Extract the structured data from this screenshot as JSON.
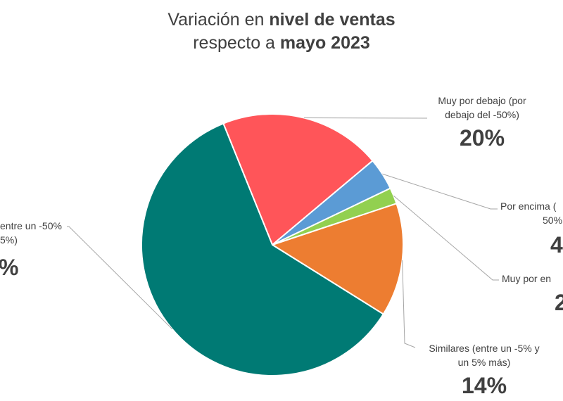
{
  "chart_data": {
    "type": "pie",
    "title": {
      "line1_a": "Variación en ",
      "line1_b": "nivel de ventas",
      "line2_a": "respecto a ",
      "line2_b": "mayo 2023"
    },
    "slices": [
      {
        "label": "Muy por debajo (por debajo del -50%)",
        "value": 20,
        "value_label": "20%",
        "color": "#FF5559"
      },
      {
        "label": "Por encima (... 50%",
        "value": 4,
        "value_label": "4",
        "color": "#5B9BD5"
      },
      {
        "label": "Muy por en...",
        "value": 2,
        "value_label": "2",
        "color": "#92D050"
      },
      {
        "label": "Similares (entre un -5% y un 5% más)",
        "value": 14,
        "value_label": "14%",
        "color": "#ED7D31"
      },
      {
        "label": "...entre un -50% ...5%)",
        "value": 60,
        "value_label": "...%",
        "color": "#007A74"
      }
    ],
    "visible_text": {
      "s0_l1": "Muy por debajo (por",
      "s0_l2": "debajo del -50%)",
      "s0_pct": "20%",
      "s1_l1": "Por encima (",
      "s1_l2": "50%",
      "s1_pct": "4",
      "s2_l1": "Muy por en",
      "s2_pct": "2",
      "s3_l1": "Similares (entre un -5% y",
      "s3_l2": "un 5% más)",
      "s3_pct": "14%",
      "s4_l1": "entre un -50%",
      "s4_l2": "5%)",
      "s4_pct": "%"
    }
  }
}
